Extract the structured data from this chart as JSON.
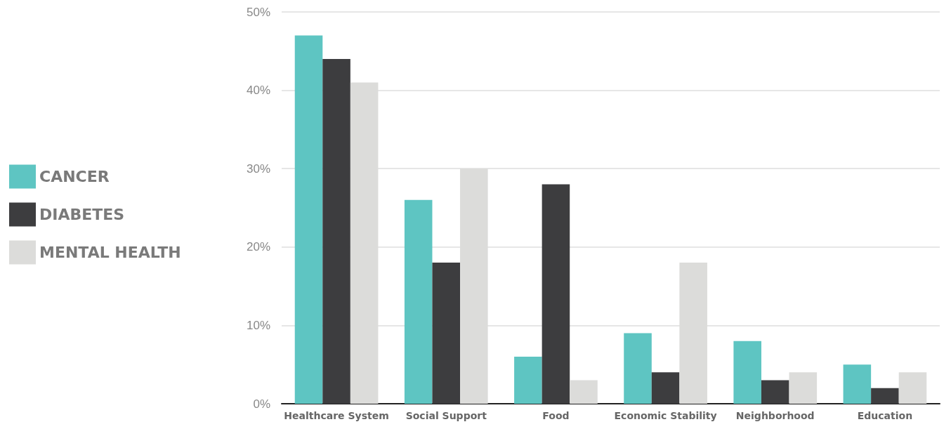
{
  "chart_data": {
    "type": "bar",
    "categories": [
      "Healthcare System",
      "Social Support",
      "Food",
      "Economic Stability",
      "Neighborhood",
      "Education"
    ],
    "series": [
      {
        "name": "CANCER",
        "color": "#5ec5c2",
        "values": [
          47,
          26,
          6,
          9,
          8,
          5
        ]
      },
      {
        "name": "DIABETES",
        "color": "#3d3d3f",
        "values": [
          44,
          18,
          28,
          4,
          3,
          2
        ]
      },
      {
        "name": "MENTAL HEALTH",
        "color": "#dcdcda",
        "values": [
          41,
          30,
          3,
          18,
          4,
          4
        ]
      }
    ],
    "ylim": [
      0,
      50
    ],
    "yticks": [
      {
        "value": 0,
        "label": "0%"
      },
      {
        "value": 10,
        "label": "10%"
      },
      {
        "value": 20,
        "label": "20%"
      },
      {
        "value": 30,
        "label": "30%"
      },
      {
        "value": 40,
        "label": "40%"
      },
      {
        "value": 50,
        "label": "50%"
      }
    ],
    "grid": "y",
    "legend": "left"
  }
}
